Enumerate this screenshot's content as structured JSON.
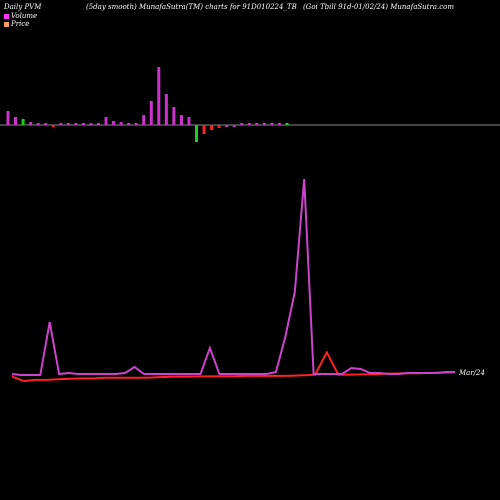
{
  "header": {
    "left": "Daily PVM",
    "center": "(5day smooth) MunafaSutra(TM) charts for 91D010224_TB",
    "right": "(Goi Tbill 91d-01/02/24) MunafaSutra.com"
  },
  "legend": {
    "volume_label": "Volume",
    "price_label": "Price",
    "volume_color": "#ff33ff",
    "price_color": "#ff9966"
  },
  "colors": {
    "background": "#000000",
    "baseline": "#888888",
    "vol_up": "#cc33cc",
    "vol_down_red": "#ff2222",
    "vol_down_green": "#22cc22",
    "price_line": "#ff2222",
    "volume_line": "#cc44cc"
  },
  "chart_data": {
    "type": "bar",
    "series": [
      {
        "name": "Volume",
        "bars": [
          14,
          8,
          6,
          3,
          2,
          1,
          -1,
          2,
          2,
          1,
          1,
          1,
          2,
          8,
          4,
          3,
          2,
          2,
          10,
          24,
          58,
          31,
          18,
          10,
          8,
          -17,
          -9,
          -5,
          -3,
          -2,
          -1,
          1,
          1,
          1,
          1,
          1,
          1,
          1
        ],
        "bar_colors": [
          "u",
          "u",
          "g",
          "u",
          "u",
          "u",
          "r",
          "u",
          "u",
          "u",
          "u",
          "u",
          "u",
          "u",
          "u",
          "u",
          "u",
          "u",
          "u",
          "u",
          "u",
          "u",
          "u",
          "u",
          "u",
          "g",
          "r",
          "r",
          "r",
          "u",
          "u",
          "u",
          "u",
          "u",
          "u",
          "u",
          "u",
          "g"
        ]
      },
      {
        "name": "Price",
        "values": [
          2,
          0,
          0.5,
          0.5,
          0.8,
          1,
          1.2,
          1.2,
          1.5,
          1.5,
          1.5,
          1.5,
          1.6,
          1.8,
          2,
          2,
          2.1,
          2.1,
          2.2,
          2.2,
          2.3,
          2.3,
          2.3,
          2.3,
          2.4,
          2.6,
          2.8,
          13,
          2.8,
          2.9,
          3,
          3.1,
          3.3,
          3.4,
          3.5,
          3.6,
          3.7,
          3.8,
          3.9
        ]
      },
      {
        "name": "Volume (5day smooth)",
        "values": [
          3,
          2,
          2,
          2,
          55,
          3,
          4,
          3,
          3,
          3,
          3,
          3,
          4,
          10,
          3,
          3,
          3,
          3,
          3,
          3,
          3,
          29,
          3,
          3,
          3,
          3,
          3,
          3,
          5,
          40,
          85,
          198,
          3,
          3,
          3,
          3,
          9,
          8,
          4,
          4,
          3,
          3,
          4,
          4,
          4,
          4,
          5,
          5
        ]
      }
    ],
    "end_label": "Mar/24"
  }
}
